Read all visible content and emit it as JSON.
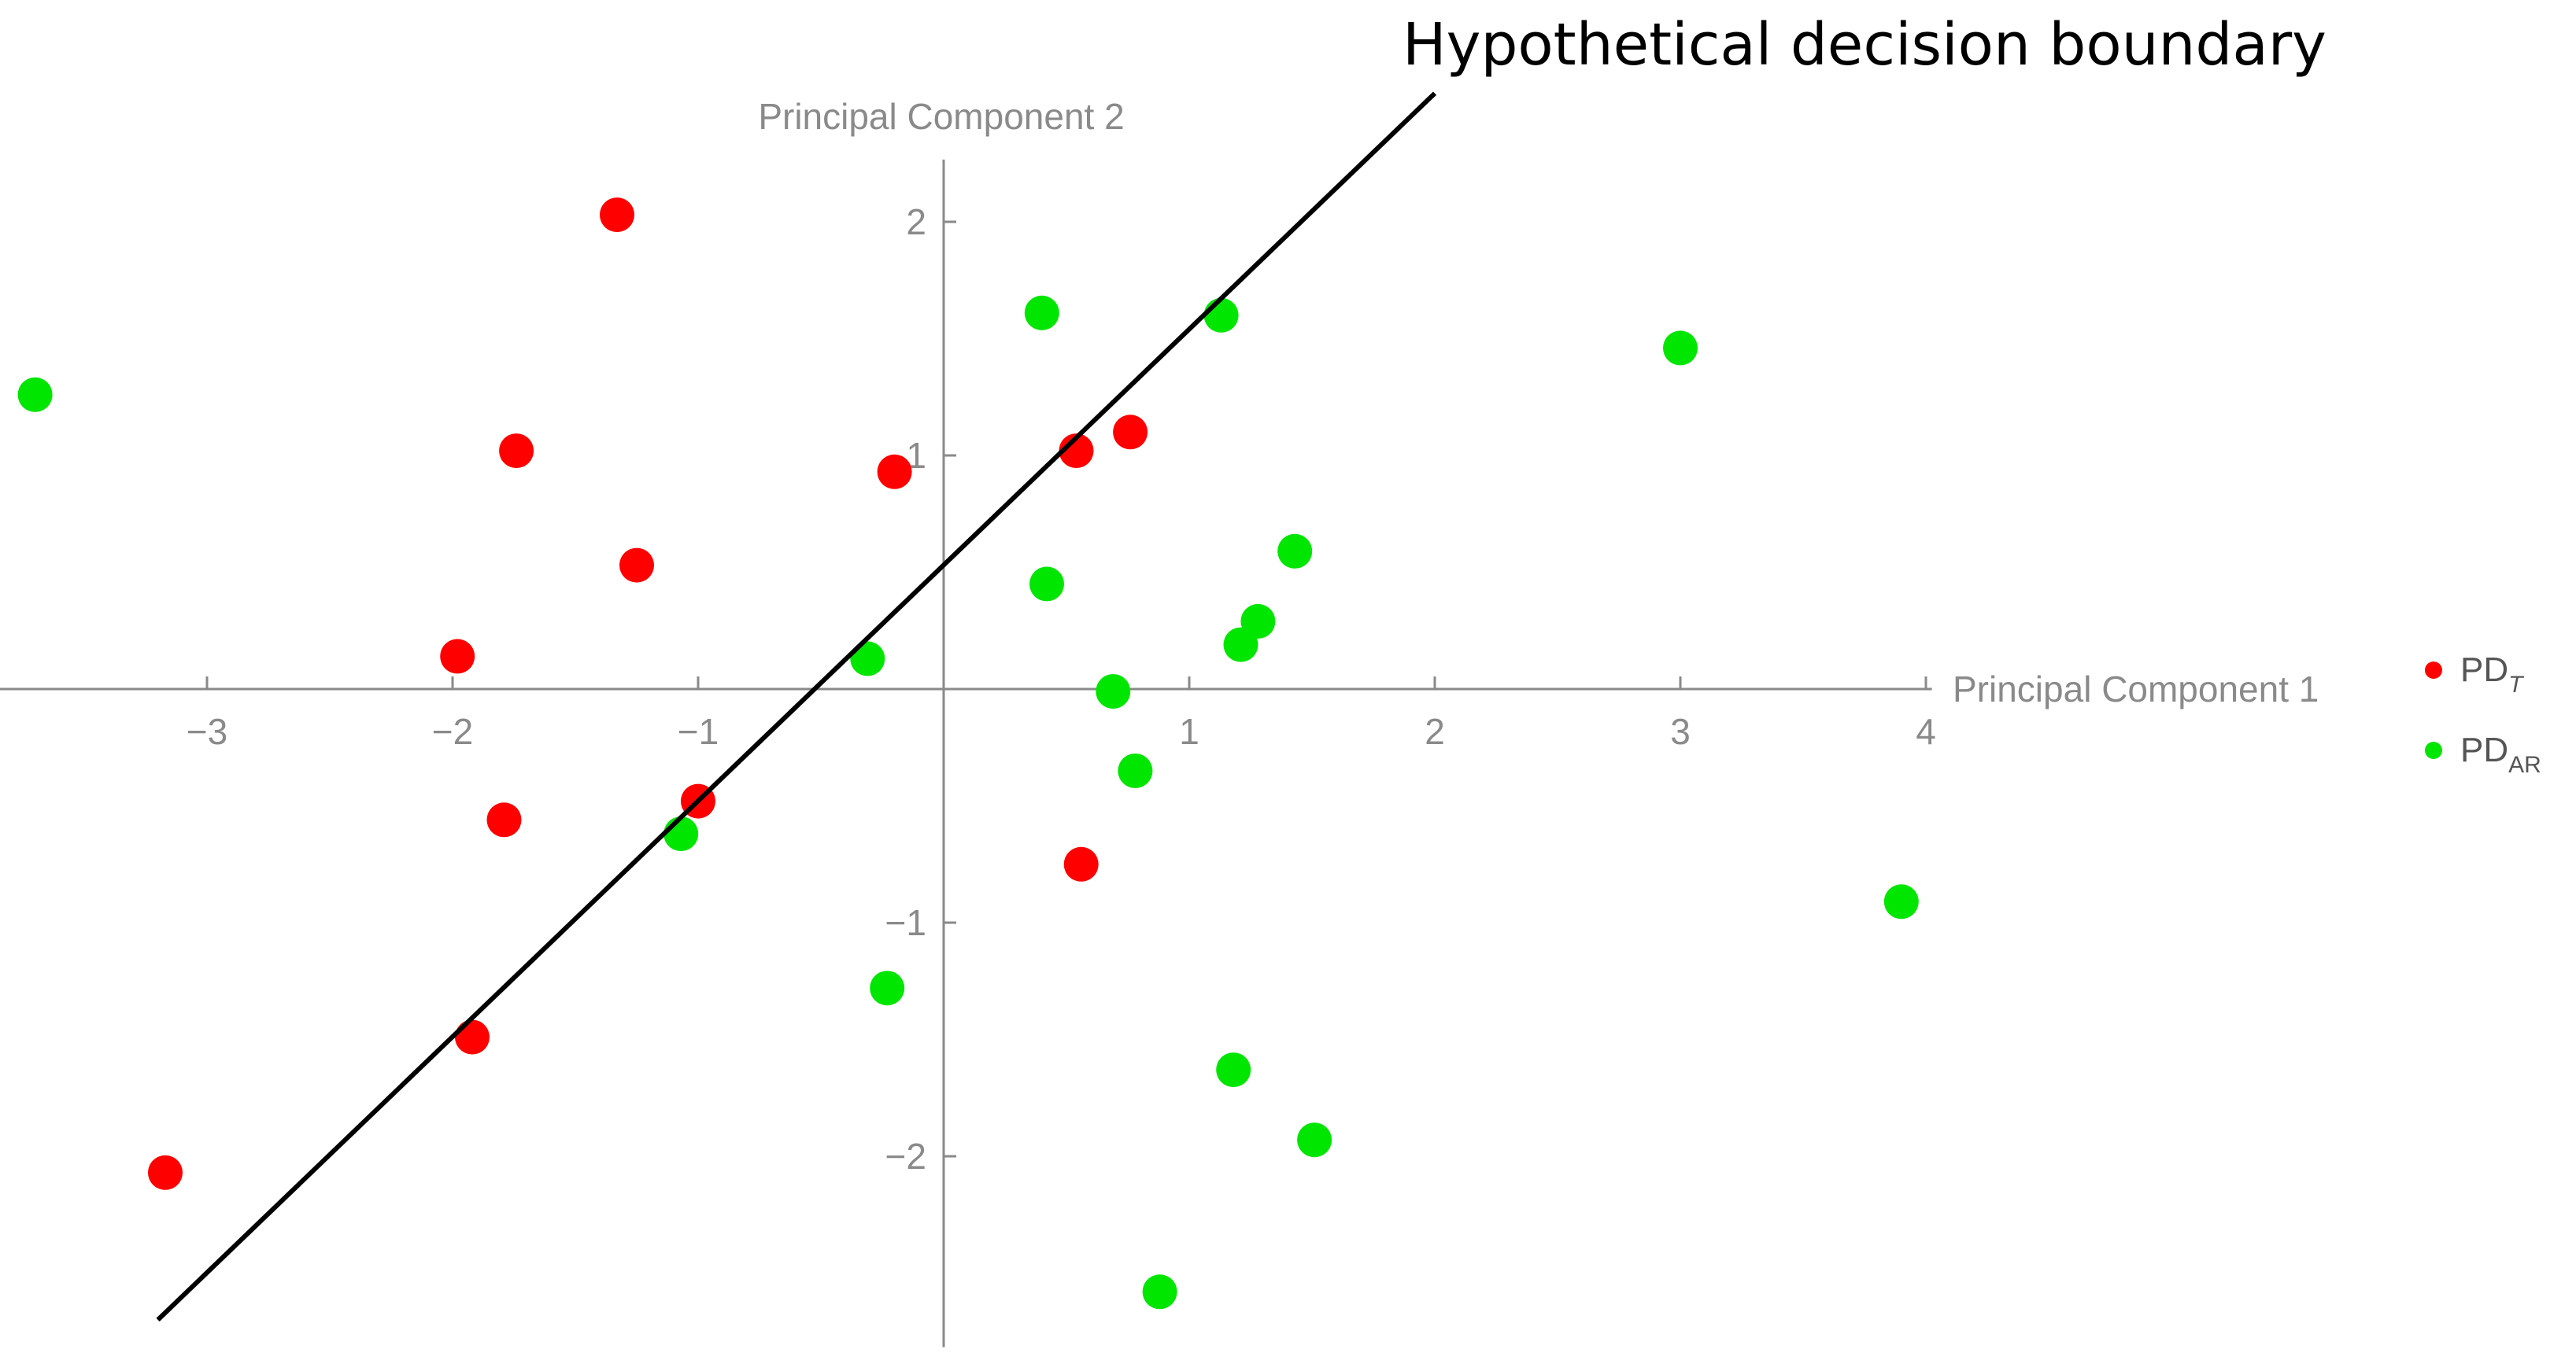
{
  "chart_data": {
    "type": "scatter",
    "title": "",
    "xlabel": "Principal Component 1",
    "ylabel": "Principal Component 2",
    "xlim": [
      -3.85,
      4.05
    ],
    "ylim": [
      -2.75,
      2.3
    ],
    "x_ticks": [
      {
        "value": -3,
        "label": "−3"
      },
      {
        "value": -2,
        "label": "−2"
      },
      {
        "value": -1,
        "label": "−1"
      },
      {
        "value": 1,
        "label": "1"
      },
      {
        "value": 2,
        "label": "2"
      },
      {
        "value": 3,
        "label": "3"
      },
      {
        "value": 4,
        "label": "4"
      }
    ],
    "y_ticks": [
      {
        "value": -2,
        "label": "−2"
      },
      {
        "value": -1,
        "label": "−1"
      },
      {
        "value": 1,
        "label": "1"
      },
      {
        "value": 2,
        "label": "2"
      }
    ],
    "grid": false,
    "legend_position": "right",
    "series": [
      {
        "name": "PD",
        "subscript": "T",
        "color": "#ff0000",
        "points": [
          [
            -1.33,
            2.03
          ],
          [
            -1.74,
            1.02
          ],
          [
            -0.2,
            0.93
          ],
          [
            0.54,
            1.02
          ],
          [
            0.76,
            1.1
          ],
          [
            -1.25,
            0.53
          ],
          [
            -1.98,
            0.14
          ],
          [
            -1.0,
            -0.48
          ],
          [
            -1.79,
            -0.56
          ],
          [
            0.56,
            -0.75
          ],
          [
            -1.92,
            -1.49
          ],
          [
            -3.17,
            -2.07
          ]
        ]
      },
      {
        "name": "PD",
        "subscript": "AR",
        "color": "#00e600",
        "points": [
          [
            -3.7,
            1.26
          ],
          [
            0.4,
            1.61
          ],
          [
            1.13,
            1.6
          ],
          [
            3.0,
            1.46
          ],
          [
            1.43,
            0.59
          ],
          [
            0.42,
            0.45
          ],
          [
            1.28,
            0.29
          ],
          [
            1.21,
            0.19
          ],
          [
            -0.31,
            0.13
          ],
          [
            0.69,
            -0.01
          ],
          [
            0.78,
            -0.35
          ],
          [
            -1.07,
            -0.62
          ],
          [
            3.9,
            -0.91
          ],
          [
            -0.23,
            -1.28
          ],
          [
            1.18,
            -1.63
          ],
          [
            1.51,
            -1.93
          ],
          [
            0.88,
            -2.58
          ]
        ]
      }
    ],
    "decision_boundary": {
      "label": "Hypothetical decision boundary",
      "color": "#000000",
      "start": [
        -3.2,
        -2.7
      ],
      "end": [
        2.0,
        2.55
      ]
    }
  }
}
